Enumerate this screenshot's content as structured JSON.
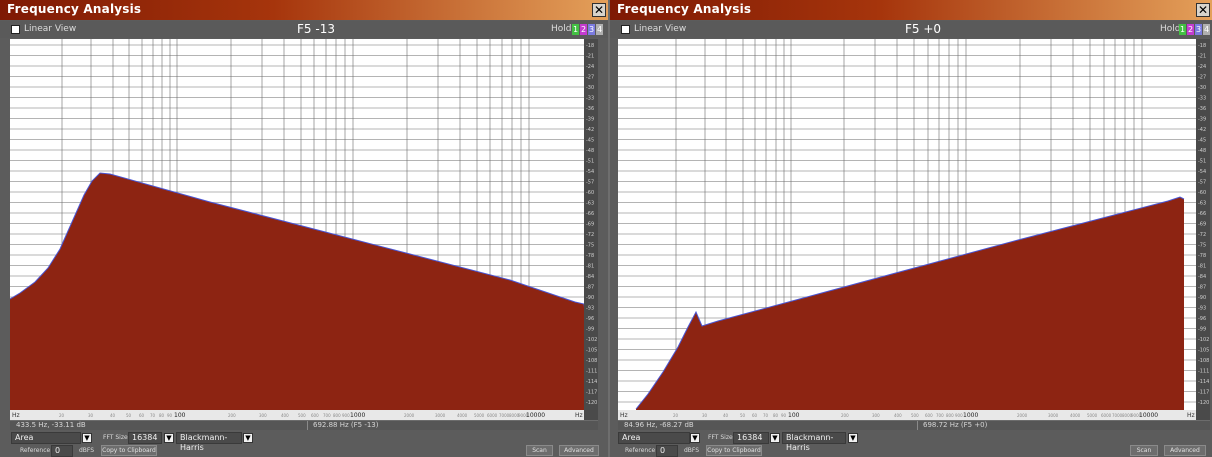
{
  "colors": {
    "fill": "#8d2412",
    "curve": "#4a55d4",
    "grid": "#6a6a6a",
    "panel": "#5c5c5c",
    "titlebar": "#a33208",
    "hold_boxes": [
      "#43c043",
      "#c43bd0",
      "#7b7be0",
      "#b0b0b0"
    ]
  },
  "windows": [
    {
      "title": "Frequency Analysis",
      "close_glyph": "✕",
      "linear_view_label": "Linear View",
      "note": "F5 -13",
      "hold_label": "Hold",
      "hold_boxes": [
        "1",
        "2",
        "3",
        "4"
      ],
      "x_axis": {
        "start_label": "Hz",
        "end_label": "Hz",
        "labels": [
          "20",
          "30",
          "40",
          "50",
          "60",
          "70",
          "80",
          "90",
          "100",
          "200",
          "300",
          "400",
          "500",
          "600",
          "700",
          "800",
          "900",
          "1000",
          "2000",
          "3000",
          "4000",
          "5000",
          "6000",
          "7000",
          "8000",
          "9000",
          "10000"
        ]
      },
      "y_axis": {
        "unit": "dB",
        "ticks": [
          "-18",
          "-21",
          "-24",
          "-27",
          "-30",
          "-33",
          "-36",
          "-39",
          "-42",
          "-45",
          "-48",
          "-51",
          "-54",
          "-57",
          "-60",
          "-63",
          "-66",
          "-69",
          "-72",
          "-75",
          "-78",
          "-81",
          "-84",
          "-87",
          "-90",
          "-93",
          "-96",
          "-99",
          "-102",
          "-105",
          "-108",
          "-111",
          "-114",
          "-117",
          "-120"
        ]
      },
      "status_left": "433.5 Hz, -33.11 dB",
      "status_right": "692.88 Hz (F5 -13)",
      "mode": "Area",
      "fft_size_label": "FFT Size",
      "fft_size": "16384",
      "window_fn": "Blackmann-Harris",
      "reference_label": "Reference",
      "reference_value": "0",
      "reference_unit": "dBFS",
      "copy_button": "Copy to Clipboard",
      "scan_button": "Scan",
      "advanced_button": "Advanced",
      "spectrum": [
        [
          0,
          260
        ],
        [
          10,
          254
        ],
        [
          25,
          243
        ],
        [
          38,
          229
        ],
        [
          50,
          210
        ],
        [
          62,
          183
        ],
        [
          74,
          156
        ],
        [
          82,
          142
        ],
        [
          90,
          134
        ],
        [
          100,
          135
        ],
        [
          200,
          163
        ],
        [
          300,
          189
        ],
        [
          400,
          215
        ],
        [
          500,
          241
        ],
        [
          565,
          263
        ],
        [
          574,
          265
        ],
        [
          576,
          280
        ]
      ]
    },
    {
      "title": "Frequency Analysis",
      "close_glyph": "✕",
      "linear_view_label": "Linear View",
      "note": "F5 +0",
      "hold_label": "Hold",
      "hold_boxes": [
        "1",
        "2",
        "3",
        "4"
      ],
      "x_axis": {
        "start_label": "Hz",
        "end_label": "Hz",
        "labels": [
          "20",
          "30",
          "40",
          "50",
          "60",
          "70",
          "80",
          "90",
          "100",
          "200",
          "300",
          "400",
          "500",
          "600",
          "700",
          "800",
          "900",
          "1000",
          "2000",
          "3000",
          "4000",
          "5000",
          "6000",
          "7000",
          "8000",
          "9000",
          "10000"
        ]
      },
      "y_axis": {
        "unit": "dB",
        "ticks": [
          "-18",
          "-21",
          "-24",
          "-27",
          "-30",
          "-33",
          "-36",
          "-39",
          "-42",
          "-45",
          "-48",
          "-51",
          "-54",
          "-57",
          "-60",
          "-63",
          "-66",
          "-69",
          "-72",
          "-75",
          "-78",
          "-81",
          "-84",
          "-87",
          "-90",
          "-93",
          "-96",
          "-99",
          "-102",
          "-105",
          "-108",
          "-111",
          "-114",
          "-117",
          "-120"
        ]
      },
      "status_left": "84.96 Hz, -68.27 dB",
      "status_right": "698.72 Hz (F5 +0)",
      "mode": "Area",
      "fft_size_label": "FFT Size",
      "fft_size": "16384",
      "window_fn": "Blackmann-Harris",
      "reference_label": "Reference",
      "reference_value": "0",
      "reference_unit": "dBFS",
      "copy_button": "Copy to Clipboard",
      "scan_button": "Scan",
      "advanced_button": "Advanced",
      "spectrum": [
        [
          18,
          370
        ],
        [
          30,
          355
        ],
        [
          45,
          333
        ],
        [
          60,
          308
        ],
        [
          70,
          288
        ],
        [
          78,
          273
        ],
        [
          84,
          287
        ],
        [
          100,
          282
        ],
        [
          200,
          255
        ],
        [
          300,
          228
        ],
        [
          400,
          201
        ],
        [
          500,
          175
        ],
        [
          550,
          162
        ],
        [
          562,
          158
        ],
        [
          566,
          160
        ]
      ]
    }
  ]
}
